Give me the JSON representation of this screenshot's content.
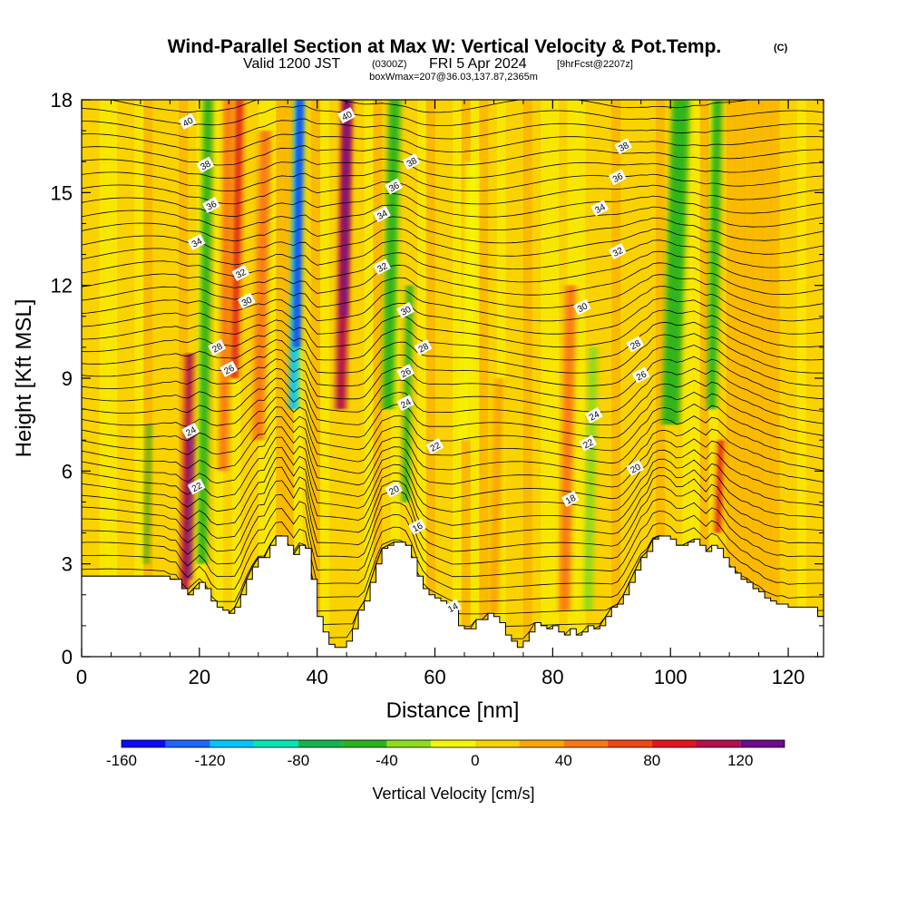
{
  "chart_data": {
    "type": "heatmap",
    "title": "Wind-Parallel Section at Max W: Vertical Velocity & Pot.Temp.",
    "title_mark": "(C)",
    "subtitle_main": "Valid 1200 JST",
    "subtitle_utc": "(0300Z)",
    "subtitle_date": "FRI 5 Apr 2024",
    "subtitle_fcst": "[9hrFcst@2207z]",
    "subtitle2": "boxWmax=207@36.03,137.87,2365m",
    "xlabel": "Distance [nm]",
    "ylabel": "Height [Kft MSL]",
    "xlim": [
      0,
      126
    ],
    "ylim": [
      0,
      18
    ],
    "xticks": [
      0,
      20,
      40,
      60,
      80,
      100,
      120
    ],
    "yticks": [
      0,
      3,
      6,
      9,
      12,
      15,
      18
    ],
    "colorbar": {
      "label": "Vertical Velocity [cm/s]",
      "ticks": [
        -160,
        -120,
        -80,
        -40,
        0,
        40,
        80,
        120
      ],
      "levels": [
        -160,
        -140,
        -120,
        -100,
        -80,
        -60,
        -40,
        -20,
        0,
        20,
        40,
        60,
        80,
        100,
        120,
        140
      ],
      "colors": [
        "#0a0aff",
        "#1e64ff",
        "#00c8ff",
        "#00e6b4",
        "#14b450",
        "#28b41e",
        "#8cdc1e",
        "#f5f500",
        "#fad200",
        "#faa500",
        "#fa7814",
        "#f04614",
        "#e6141e",
        "#b40f4b",
        "#6e0a8c"
      ]
    },
    "terrain": [
      [
        0,
        2.6
      ],
      [
        2,
        2.6
      ],
      [
        4,
        2.6
      ],
      [
        6,
        2.6
      ],
      [
        8,
        2.6
      ],
      [
        10,
        2.6
      ],
      [
        12,
        2.6
      ],
      [
        14,
        2.6
      ],
      [
        15,
        2.5
      ],
      [
        16,
        2.5
      ],
      [
        17,
        2.2
      ],
      [
        18,
        2.0
      ],
      [
        19,
        2.2
      ],
      [
        20,
        2.4
      ],
      [
        21,
        2.2
      ],
      [
        22,
        1.8
      ],
      [
        23,
        1.6
      ],
      [
        24,
        1.5
      ],
      [
        25,
        1.4
      ],
      [
        26,
        1.6
      ],
      [
        27,
        2.0
      ],
      [
        28,
        2.5
      ],
      [
        29,
        2.9
      ],
      [
        30,
        3.2
      ],
      [
        31,
        3.2
      ],
      [
        32,
        3.6
      ],
      [
        33,
        3.9
      ],
      [
        34,
        3.9
      ],
      [
        35,
        3.6
      ],
      [
        36,
        3.3
      ],
      [
        37,
        3.6
      ],
      [
        38,
        3.5
      ],
      [
        39,
        2.5
      ],
      [
        40,
        1.3
      ],
      [
        41,
        0.8
      ],
      [
        42,
        0.4
      ],
      [
        43,
        0.3
      ],
      [
        44,
        0.3
      ],
      [
        45,
        0.5
      ],
      [
        46,
        0.9
      ],
      [
        47,
        1.5
      ],
      [
        48,
        1.8
      ],
      [
        49,
        2.4
      ],
      [
        50,
        3.0
      ],
      [
        51,
        3.5
      ],
      [
        52,
        3.6
      ],
      [
        53,
        3.7
      ],
      [
        54,
        3.7
      ],
      [
        55,
        3.6
      ],
      [
        56,
        3.2
      ],
      [
        57,
        2.6
      ],
      [
        58,
        2.2
      ],
      [
        59,
        2.0
      ],
      [
        60,
        1.9
      ],
      [
        61,
        1.8
      ],
      [
        62,
        1.7
      ],
      [
        63,
        1.5
      ],
      [
        64,
        1.0
      ],
      [
        65,
        0.9
      ],
      [
        66,
        0.9
      ],
      [
        67,
        1.2
      ],
      [
        68,
        1.2
      ],
      [
        69,
        1.4
      ],
      [
        70,
        1.3
      ],
      [
        71,
        1.1
      ],
      [
        72,
        0.7
      ],
      [
        73,
        0.5
      ],
      [
        74,
        0.3
      ],
      [
        75,
        0.5
      ],
      [
        76,
        0.8
      ],
      [
        77,
        1.1
      ],
      [
        78,
        1.0
      ],
      [
        79,
        0.9
      ],
      [
        80,
        1.0
      ],
      [
        81,
        0.8
      ],
      [
        82,
        0.7
      ],
      [
        83,
        0.9
      ],
      [
        84,
        0.7
      ],
      [
        85,
        0.8
      ],
      [
        86,
        1.0
      ],
      [
        87,
        0.9
      ],
      [
        88,
        1.0
      ],
      [
        89,
        1.3
      ],
      [
        90,
        1.6
      ],
      [
        91,
        1.7
      ],
      [
        92,
        2.0
      ],
      [
        93,
        2.4
      ],
      [
        94,
        2.8
      ],
      [
        95,
        3.2
      ],
      [
        96,
        3.4
      ],
      [
        97,
        3.8
      ],
      [
        98,
        3.9
      ],
      [
        99,
        3.9
      ],
      [
        100,
        3.8
      ],
      [
        101,
        3.6
      ],
      [
        102,
        3.6
      ],
      [
        103,
        3.7
      ],
      [
        104,
        3.8
      ],
      [
        105,
        3.6
      ],
      [
        106,
        3.4
      ],
      [
        107,
        3.6
      ],
      [
        108,
        3.5
      ],
      [
        109,
        3.2
      ],
      [
        110,
        2.9
      ],
      [
        111,
        2.7
      ],
      [
        112,
        2.5
      ],
      [
        113,
        2.4
      ],
      [
        114,
        2.2
      ],
      [
        115,
        2.1
      ],
      [
        116,
        1.9
      ],
      [
        117,
        1.8
      ],
      [
        118,
        1.7
      ],
      [
        119,
        1.7
      ],
      [
        120,
        1.6
      ],
      [
        121,
        1.6
      ],
      [
        122,
        1.6
      ],
      [
        123,
        1.6
      ],
      [
        124,
        1.6
      ],
      [
        125,
        1.3
      ],
      [
        126,
        1.3
      ]
    ],
    "velocity_plumes": [
      {
        "x": 11,
        "w": 0.7,
        "top": 7.5,
        "bottom": 3,
        "value": -50
      },
      {
        "x": 17.5,
        "w": 1.4,
        "top": 9.8,
        "bottom": 2.2,
        "value": 110
      },
      {
        "x": 18.2,
        "w": 0.8,
        "top": 7.2,
        "bottom": 2.5,
        "value": 135
      },
      {
        "x": 20.5,
        "w": 1.6,
        "top": 18,
        "bottom": 3,
        "value": -45
      },
      {
        "x": 24,
        "w": 1.6,
        "top": 18,
        "bottom": 6,
        "value": 55
      },
      {
        "x": 26,
        "w": 1.3,
        "top": 18,
        "bottom": 9,
        "value": 80
      },
      {
        "x": 30,
        "w": 2.0,
        "top": 17,
        "bottom": 7,
        "value": 50
      },
      {
        "x": 36,
        "w": 1.6,
        "top": 18,
        "bottom": 8,
        "value": -105
      },
      {
        "x": 36.6,
        "w": 0.8,
        "top": 18,
        "bottom": 10,
        "value": -160
      },
      {
        "x": 44,
        "w": 1.8,
        "top": 18,
        "bottom": 8,
        "value": 115
      },
      {
        "x": 44.6,
        "w": 0.9,
        "top": 18,
        "bottom": 11,
        "value": 140
      },
      {
        "x": 52,
        "w": 2.0,
        "top": 18,
        "bottom": 8,
        "value": -45
      },
      {
        "x": 55,
        "w": 1.2,
        "top": 12,
        "bottom": 5,
        "value": -60
      },
      {
        "x": 65,
        "w": 2.2,
        "top": 16,
        "bottom": 7,
        "value": -20
      },
      {
        "x": 70,
        "w": 1.6,
        "top": 9,
        "bottom": 1.4,
        "value": 35
      },
      {
        "x": 82,
        "w": 1.8,
        "top": 12,
        "bottom": 1.5,
        "value": 45
      },
      {
        "x": 86,
        "w": 1.5,
        "top": 10,
        "bottom": 1.5,
        "value": -40
      },
      {
        "x": 100,
        "w": 3.0,
        "top": 18,
        "bottom": 7.5,
        "value": -55
      },
      {
        "x": 107,
        "w": 1.6,
        "top": 18,
        "bottom": 8,
        "value": -45
      },
      {
        "x": 108,
        "w": 1.0,
        "top": 7,
        "bottom": 4,
        "value": 80
      }
    ],
    "isentrope_labels": [
      {
        "x": 18,
        "y": 17.3,
        "text": "40"
      },
      {
        "x": 45,
        "y": 17.5,
        "text": "40"
      },
      {
        "x": 92,
        "y": 16.5,
        "text": "38"
      },
      {
        "x": 21,
        "y": 15.9,
        "text": "38"
      },
      {
        "x": 56,
        "y": 16.0,
        "text": "38"
      },
      {
        "x": 91,
        "y": 15.5,
        "text": "36"
      },
      {
        "x": 22,
        "y": 14.6,
        "text": "36"
      },
      {
        "x": 53,
        "y": 15.2,
        "text": "36"
      },
      {
        "x": 88,
        "y": 14.5,
        "text": "34"
      },
      {
        "x": 19.5,
        "y": 13.4,
        "text": "34"
      },
      {
        "x": 51,
        "y": 14.3,
        "text": "34"
      },
      {
        "x": 91,
        "y": 13.1,
        "text": "32"
      },
      {
        "x": 27,
        "y": 12.4,
        "text": "32"
      },
      {
        "x": 51,
        "y": 12.6,
        "text": "32"
      },
      {
        "x": 28,
        "y": 11.5,
        "text": "30"
      },
      {
        "x": 55,
        "y": 11.2,
        "text": "30"
      },
      {
        "x": 85,
        "y": 11.3,
        "text": "30"
      },
      {
        "x": 23,
        "y": 10.0,
        "text": "28"
      },
      {
        "x": 58,
        "y": 10.0,
        "text": "28"
      },
      {
        "x": 94,
        "y": 10.1,
        "text": "28"
      },
      {
        "x": 25,
        "y": 9.3,
        "text": "26"
      },
      {
        "x": 55,
        "y": 9.2,
        "text": "26"
      },
      {
        "x": 95,
        "y": 9.1,
        "text": "26"
      },
      {
        "x": 55,
        "y": 8.2,
        "text": "24"
      },
      {
        "x": 18.5,
        "y": 7.3,
        "text": "24"
      },
      {
        "x": 87,
        "y": 7.8,
        "text": "24"
      },
      {
        "x": 60,
        "y": 6.8,
        "text": "22"
      },
      {
        "x": 86,
        "y": 6.9,
        "text": "22"
      },
      {
        "x": 19.5,
        "y": 5.5,
        "text": "22"
      },
      {
        "x": 94,
        "y": 6.1,
        "text": "20"
      },
      {
        "x": 53,
        "y": 5.4,
        "text": "20"
      },
      {
        "x": 83,
        "y": 5.1,
        "text": "18"
      },
      {
        "x": 57,
        "y": 4.2,
        "text": "16"
      },
      {
        "x": 63,
        "y": 1.6,
        "text": "14"
      }
    ]
  }
}
